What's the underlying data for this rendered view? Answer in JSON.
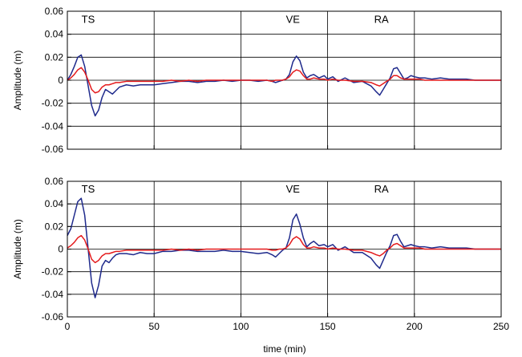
{
  "chart_data": [
    {
      "type": "line",
      "panel": "top",
      "title": "",
      "xlabel": "",
      "ylabel": "Amplitude (m)",
      "xlim": [
        0,
        250
      ],
      "ylim": [
        -0.06,
        0.06
      ],
      "x_ticks": [
        0,
        50,
        100,
        150,
        200,
        250
      ],
      "x_tick_labels": [],
      "y_ticks": [
        -0.06,
        -0.04,
        -0.02,
        0,
        0.02,
        0.04,
        0.06
      ],
      "y_tick_labels": [
        "-0.06",
        "-0.04",
        "-0.02",
        "0",
        "0.02",
        "0.04",
        "0.06"
      ],
      "vertical_gridlines_x": [
        50,
        100,
        150,
        200
      ],
      "horizontal_gridlines_y": [
        -0.04,
        -0.02,
        0,
        0.02,
        0.04
      ],
      "annotations": [
        {
          "text": "TS",
          "x": 12,
          "y": 0.05
        },
        {
          "text": "VE",
          "x": 130,
          "y": 0.05
        },
        {
          "text": "RA",
          "x": 181,
          "y": 0.05
        }
      ],
      "series": [
        {
          "color": "#1f2a8c",
          "x": [
            0,
            2,
            4,
            6,
            8,
            10,
            12,
            14,
            16,
            18,
            20,
            22,
            24,
            26,
            28,
            30,
            34,
            38,
            42,
            46,
            50,
            55,
            60,
            65,
            70,
            75,
            80,
            85,
            90,
            95,
            100,
            105,
            110,
            115,
            118,
            120,
            122,
            124,
            126,
            128,
            130,
            132,
            134,
            136,
            138,
            140,
            142,
            145,
            148,
            150,
            153,
            156,
            160,
            165,
            170,
            175,
            178,
            180,
            182,
            184,
            186,
            188,
            190,
            192,
            194,
            196,
            198,
            200,
            203,
            206,
            210,
            215,
            220,
            225,
            230,
            235,
            240,
            245,
            250
          ],
          "y": [
            0.0,
            0.005,
            0.012,
            0.02,
            0.022,
            0.012,
            -0.005,
            -0.022,
            -0.031,
            -0.026,
            -0.015,
            -0.008,
            -0.01,
            -0.012,
            -0.009,
            -0.006,
            -0.004,
            -0.005,
            -0.004,
            -0.004,
            -0.004,
            -0.003,
            -0.002,
            -0.001,
            -0.001,
            -0.002,
            -0.001,
            -0.001,
            0.0,
            -0.001,
            0.0,
            0.0,
            -0.001,
            0.0,
            -0.001,
            -0.002,
            -0.001,
            0.0,
            0.001,
            0.005,
            0.016,
            0.021,
            0.017,
            0.007,
            0.002,
            0.004,
            0.005,
            0.002,
            0.004,
            0.001,
            0.003,
            -0.001,
            0.002,
            -0.002,
            -0.001,
            -0.005,
            -0.01,
            -0.013,
            -0.008,
            -0.003,
            0.002,
            0.01,
            0.011,
            0.006,
            0.001,
            0.002,
            0.004,
            0.003,
            0.002,
            0.002,
            0.001,
            0.002,
            0.001,
            0.001,
            0.001,
            0.0,
            0.0,
            0.0,
            0.0
          ]
        },
        {
          "color": "#e41a1c",
          "x": [
            0,
            2,
            4,
            6,
            8,
            10,
            12,
            14,
            16,
            18,
            20,
            22,
            24,
            26,
            28,
            30,
            34,
            38,
            42,
            46,
            50,
            55,
            60,
            65,
            70,
            75,
            80,
            85,
            90,
            95,
            100,
            105,
            110,
            115,
            118,
            120,
            122,
            124,
            126,
            128,
            130,
            132,
            134,
            136,
            138,
            140,
            142,
            145,
            148,
            150,
            153,
            156,
            160,
            165,
            170,
            175,
            178,
            180,
            182,
            184,
            186,
            188,
            190,
            192,
            194,
            196,
            198,
            200,
            203,
            206,
            210,
            215,
            220,
            225,
            230,
            235,
            240,
            245,
            250
          ],
          "y": [
            0.0,
            0.002,
            0.005,
            0.009,
            0.011,
            0.007,
            0.0,
            -0.008,
            -0.011,
            -0.01,
            -0.006,
            -0.004,
            -0.004,
            -0.003,
            -0.002,
            -0.002,
            -0.001,
            -0.001,
            -0.001,
            -0.001,
            -0.001,
            -0.001,
            0.0,
            -0.001,
            0.0,
            -0.001,
            0.0,
            0.0,
            0.0,
            0.0,
            0.0,
            0.0,
            0.0,
            0.0,
            -0.001,
            0.0,
            0.0,
            0.0,
            0.001,
            0.003,
            0.007,
            0.009,
            0.008,
            0.004,
            0.001,
            0.001,
            0.002,
            0.001,
            0.001,
            0.0,
            0.001,
            0.0,
            0.0,
            -0.001,
            -0.001,
            -0.002,
            -0.004,
            -0.005,
            -0.003,
            -0.001,
            0.001,
            0.004,
            0.004,
            0.002,
            0.001,
            0.001,
            0.001,
            0.001,
            0.001,
            0.0,
            0.0,
            0.0,
            0.0,
            0.0,
            0.0,
            0.0,
            0.0,
            0.0,
            0.0
          ]
        }
      ]
    },
    {
      "type": "line",
      "panel": "bottom",
      "title": "",
      "xlabel": "time (min)",
      "ylabel": "Amplitude (m)",
      "xlim": [
        0,
        250
      ],
      "ylim": [
        -0.06,
        0.06
      ],
      "x_ticks": [
        0,
        50,
        100,
        150,
        200,
        250
      ],
      "x_tick_labels": [
        "0",
        "50",
        "100",
        "150",
        "200",
        "250"
      ],
      "y_ticks": [
        -0.06,
        -0.04,
        -0.02,
        0,
        0.02,
        0.04,
        0.06
      ],
      "y_tick_labels": [
        "-0.06",
        "-0.04",
        "-0.02",
        "0",
        "0.02",
        "0.04",
        "0.06"
      ],
      "vertical_gridlines_x": [
        50,
        100,
        150,
        200
      ],
      "horizontal_gridlines_y": [
        -0.04,
        -0.02,
        0,
        0.02,
        0.04
      ],
      "annotations": [
        {
          "text": "TS",
          "x": 12,
          "y": 0.05
        },
        {
          "text": "VE",
          "x": 130,
          "y": 0.05
        },
        {
          "text": "RA",
          "x": 181,
          "y": 0.05
        }
      ],
      "series": [
        {
          "color": "#1f2a8c",
          "x": [
            0,
            2,
            4,
            6,
            8,
            10,
            12,
            14,
            16,
            18,
            20,
            22,
            24,
            26,
            28,
            30,
            34,
            38,
            42,
            46,
            50,
            55,
            60,
            65,
            70,
            75,
            80,
            85,
            90,
            95,
            100,
            105,
            110,
            115,
            118,
            120,
            122,
            124,
            126,
            128,
            130,
            132,
            134,
            136,
            138,
            140,
            142,
            145,
            148,
            150,
            153,
            156,
            160,
            165,
            170,
            175,
            178,
            180,
            182,
            184,
            186,
            188,
            190,
            192,
            194,
            196,
            198,
            200,
            203,
            206,
            210,
            215,
            220,
            225,
            230,
            235,
            240,
            245,
            250
          ],
          "y": [
            0.012,
            0.018,
            0.03,
            0.042,
            0.045,
            0.03,
            0.0,
            -0.03,
            -0.043,
            -0.032,
            -0.015,
            -0.01,
            -0.012,
            -0.008,
            -0.005,
            -0.004,
            -0.004,
            -0.005,
            -0.003,
            -0.004,
            -0.004,
            -0.002,
            -0.002,
            -0.001,
            -0.001,
            -0.002,
            -0.002,
            -0.002,
            -0.001,
            -0.002,
            -0.002,
            -0.003,
            -0.004,
            -0.003,
            -0.005,
            -0.007,
            -0.004,
            -0.001,
            0.001,
            0.01,
            0.026,
            0.031,
            0.022,
            0.01,
            0.002,
            0.005,
            0.007,
            0.003,
            0.004,
            0.002,
            0.004,
            -0.001,
            0.002,
            -0.003,
            -0.003,
            -0.008,
            -0.014,
            -0.017,
            -0.01,
            -0.003,
            0.003,
            0.012,
            0.013,
            0.007,
            0.002,
            0.003,
            0.004,
            0.003,
            0.002,
            0.002,
            0.001,
            0.002,
            0.001,
            0.001,
            0.001,
            0.0,
            0.0,
            0.0,
            0.0
          ]
        },
        {
          "color": "#e41a1c",
          "x": [
            0,
            2,
            4,
            6,
            8,
            10,
            12,
            14,
            16,
            18,
            20,
            22,
            24,
            26,
            28,
            30,
            34,
            38,
            42,
            46,
            50,
            55,
            60,
            65,
            70,
            75,
            80,
            85,
            90,
            95,
            100,
            105,
            110,
            115,
            118,
            120,
            122,
            124,
            126,
            128,
            130,
            132,
            134,
            136,
            138,
            140,
            142,
            145,
            148,
            150,
            153,
            156,
            160,
            165,
            170,
            175,
            178,
            180,
            182,
            184,
            186,
            188,
            190,
            192,
            194,
            196,
            198,
            200,
            203,
            206,
            210,
            215,
            220,
            225,
            230,
            235,
            240,
            245,
            250
          ],
          "y": [
            0.001,
            0.003,
            0.006,
            0.01,
            0.012,
            0.008,
            0.0,
            -0.009,
            -0.012,
            -0.01,
            -0.006,
            -0.004,
            -0.004,
            -0.003,
            -0.002,
            -0.002,
            -0.001,
            -0.001,
            -0.001,
            -0.001,
            -0.001,
            -0.001,
            0.0,
            -0.001,
            0.0,
            -0.001,
            0.0,
            0.0,
            0.0,
            0.0,
            0.0,
            0.0,
            0.0,
            0.0,
            -0.001,
            -0.001,
            0.0,
            0.0,
            0.001,
            0.004,
            0.009,
            0.011,
            0.009,
            0.004,
            0.001,
            0.001,
            0.002,
            0.001,
            0.001,
            0.0,
            0.001,
            0.0,
            0.0,
            -0.001,
            -0.001,
            -0.003,
            -0.005,
            -0.006,
            -0.004,
            -0.001,
            0.001,
            0.004,
            0.005,
            0.003,
            0.001,
            0.001,
            0.001,
            0.001,
            0.001,
            0.0,
            0.0,
            0.0,
            0.0,
            0.0,
            0.0,
            0.0,
            0.0,
            0.0,
            0.0
          ]
        }
      ]
    }
  ]
}
